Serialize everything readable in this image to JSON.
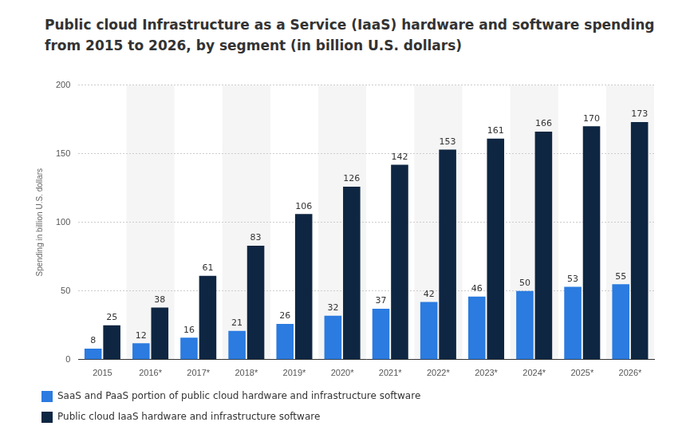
{
  "chart_data": {
    "type": "bar",
    "title": "Public cloud Infrastructure as a Service (IaaS) hardware and software spending from 2015 to 2026, by segment (in billion U.S. dollars)",
    "y_label": "Spending in billion U.S. dollars",
    "categories": [
      "2015",
      "2016*",
      "2017*",
      "2018*",
      "2019*",
      "2020*",
      "2021*",
      "2022*",
      "2023*",
      "2024*",
      "2025*",
      "2026*"
    ],
    "series": [
      {
        "name": "SaaS and PaaS portion of public cloud hardware and infrastructure software",
        "color": "#2b7be0",
        "values": [
          8,
          12,
          16,
          21,
          26,
          32,
          37,
          42,
          46,
          50,
          53,
          55
        ]
      },
      {
        "name": "Public cloud IaaS hardware and infrastructure software",
        "color": "#0e2642",
        "values": [
          25,
          38,
          61,
          83,
          106,
          126,
          142,
          153,
          161,
          166,
          170,
          173
        ]
      }
    ],
    "ylim": [
      0,
      200
    ],
    "yticks": [
      0,
      50,
      100,
      150,
      200
    ],
    "grid": true,
    "legend": "bottom",
    "data_labels": true
  }
}
